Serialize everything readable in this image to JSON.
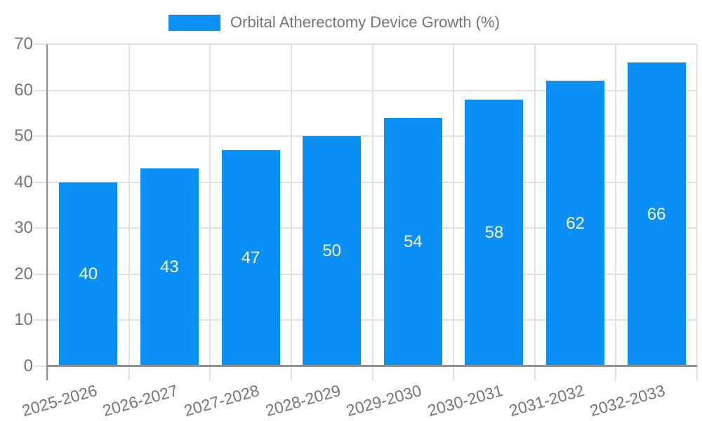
{
  "legend": {
    "label": "Orbital Atherectomy Device Growth (%)"
  },
  "colors": {
    "bar": "#0a90f4",
    "grid": "#e2e2e2",
    "axis": "#8f8f8f",
    "axis_text": "#757575",
    "value_text": "#ffffff",
    "background": "#ffffff"
  },
  "chart_data": {
    "type": "bar",
    "title": "Orbital Atherectomy Device Growth (%)",
    "categories": [
      "2025-2026",
      "2026-2027",
      "2027-2028",
      "2028-2029",
      "2029-2030",
      "2030-2031",
      "2031-2032",
      "2032-2033"
    ],
    "values": [
      40,
      43,
      47,
      50,
      54,
      58,
      62,
      66
    ],
    "series_name": "Orbital Atherectomy Device Growth (%)",
    "xlabel": "",
    "ylabel": "",
    "ylim": [
      0,
      70
    ],
    "yticks": [
      0,
      10,
      20,
      30,
      40,
      50,
      60,
      70
    ],
    "grid": true,
    "legend_position": "top",
    "value_label_position": "inside-center"
  }
}
